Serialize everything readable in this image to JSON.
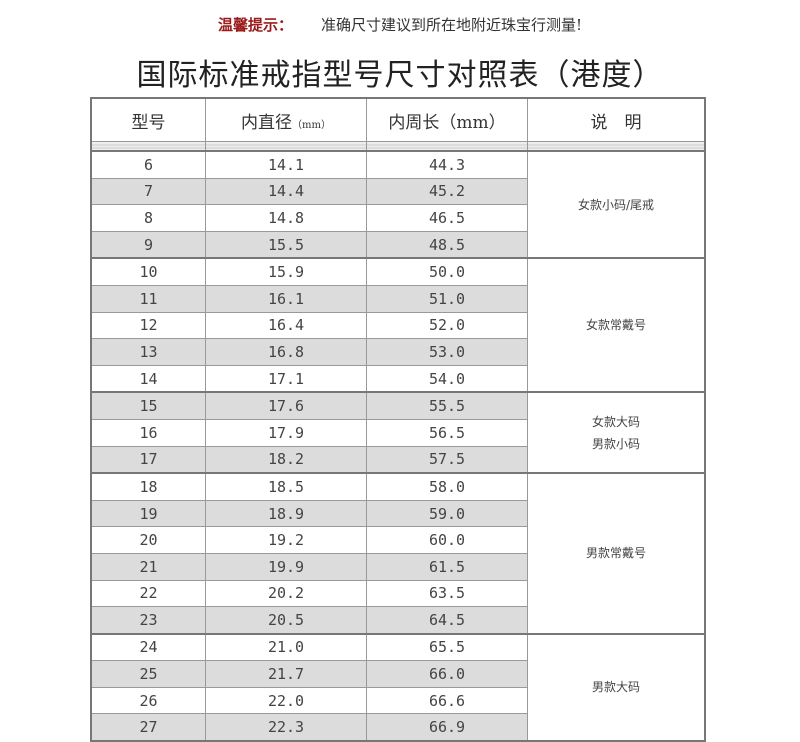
{
  "tip": {
    "label": "温馨提示：",
    "text": "准确尺寸建议到所在地附近珠宝行测量!"
  },
  "title": "国际标准戒指型号尺寸对照表（港度）",
  "headers": {
    "size": "型号",
    "diameter": "内直径",
    "diameter_unit": "（mm）",
    "circumference": "内周长（mm）",
    "note": "说　明"
  },
  "groups": [
    {
      "note": [
        "女款小码/尾戒"
      ],
      "rows": [
        [
          "6",
          "14.1",
          "44.3"
        ],
        [
          "7",
          "14.4",
          "45.2"
        ],
        [
          "8",
          "14.8",
          "46.5"
        ],
        [
          "9",
          "15.5",
          "48.5"
        ]
      ]
    },
    {
      "note": [
        "女款常戴号"
      ],
      "rows": [
        [
          "10",
          "15.9",
          "50.0"
        ],
        [
          "11",
          "16.1",
          "51.0"
        ],
        [
          "12",
          "16.4",
          "52.0"
        ],
        [
          "13",
          "16.8",
          "53.0"
        ],
        [
          "14",
          "17.1",
          "54.0"
        ]
      ]
    },
    {
      "note": [
        "女款大码",
        "男款小码"
      ],
      "rows": [
        [
          "15",
          "17.6",
          "55.5"
        ],
        [
          "16",
          "17.9",
          "56.5"
        ],
        [
          "17",
          "18.2",
          "57.5"
        ]
      ]
    },
    {
      "note": [
        "男款常戴号"
      ],
      "rows": [
        [
          "18",
          "18.5",
          "58.0"
        ],
        [
          "19",
          "18.9",
          "59.0"
        ],
        [
          "20",
          "19.2",
          "60.0"
        ],
        [
          "21",
          "19.9",
          "61.5"
        ],
        [
          "22",
          "20.2",
          "63.5"
        ],
        [
          "23",
          "20.5",
          "64.5"
        ]
      ]
    },
    {
      "note": [
        "男款大码"
      ],
      "rows": [
        [
          "24",
          "21.0",
          "65.5"
        ],
        [
          "25",
          "21.7",
          "66.0"
        ],
        [
          "26",
          "22.0",
          "66.6"
        ],
        [
          "27",
          "22.3",
          "66.9"
        ]
      ]
    }
  ]
}
